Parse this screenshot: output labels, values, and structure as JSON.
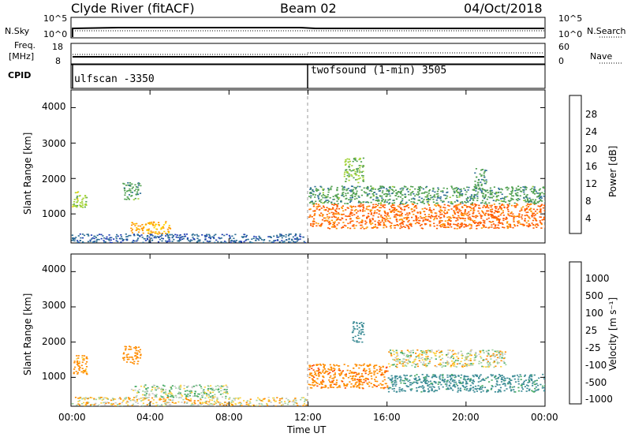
{
  "header": {
    "site": "Clyde River (fitACF)",
    "beam": "Beam 02",
    "date": "04/Oct/2018"
  },
  "params": {
    "nsky_label": "N.Sky",
    "nsky_ticks": [
      "10^5",
      "10^0"
    ],
    "nsearch_label": "N.Search",
    "nsearch_ticks": [
      "10^5",
      "10^0"
    ],
    "freq_label_1": "Freq.",
    "freq_label_2": "[MHz]",
    "freq_ticks": [
      "18",
      "8"
    ],
    "nave_label": "Nave",
    "nave_ticks": [
      "60",
      "0"
    ],
    "cpid_label": "CPID",
    "cpid_modes": [
      "ulfscan -3350",
      "twofsound (1-min) 3505"
    ]
  },
  "power_panel": {
    "ylabel": "Slant Range [km]",
    "cblabel": "Power [dB]",
    "cb_ticks": [
      "28",
      "24",
      "20",
      "16",
      "12",
      "8",
      "4"
    ],
    "cb_colors": [
      "#ff0000",
      "#ff5a00",
      "#ff9600",
      "#ffd200",
      "#a0d232",
      "#50a050",
      "#2d6e96",
      "#1e3cb4",
      "#0000ff"
    ]
  },
  "velocity_panel": {
    "ylabel": "Slant Range [km]",
    "cblabel": "Velocity [m s⁻¹]",
    "cb_ticks": [
      "1000",
      "500",
      "100",
      "25",
      "-25",
      "-100",
      "-500",
      "-1000"
    ],
    "cb_colors": [
      "#1e50b4",
      "#3c8c96",
      "#46aa64",
      "#a0d2a0",
      "#c8c8c8",
      "#ffd23c",
      "#ff8c00",
      "#ff4600",
      "#ff0000"
    ]
  },
  "axes": {
    "xlabel": "Time UT",
    "x_ticks": [
      "00:00",
      "04:00",
      "08:00",
      "12:00",
      "16:00",
      "20:00",
      "00:00"
    ],
    "y_ticks": [
      "4000",
      "3000",
      "2000",
      "1000"
    ]
  },
  "chart_data": [
    {
      "type": "heatmap",
      "title": "",
      "xlabel": "Time UT",
      "ylabel": "Slant Range [km]",
      "colorbar_label": "Power [dB]",
      "x_range_hours": [
        0,
        24
      ],
      "ylim_km": [
        180,
        4500
      ],
      "color_range_db": [
        0,
        32
      ],
      "regions": [
        {
          "t_start": 0.0,
          "t_end": 11.9,
          "range_start": 200,
          "range_end": 450,
          "power_db": 8
        },
        {
          "t_start": 0.0,
          "t_end": 0.8,
          "range_start": 1200,
          "range_end": 1650,
          "power_db": 16
        },
        {
          "t_start": 2.6,
          "t_end": 3.5,
          "range_start": 1400,
          "range_end": 1900,
          "power_db": 12
        },
        {
          "t_start": 3.0,
          "t_end": 5.0,
          "range_start": 450,
          "range_end": 800,
          "power_db": 22
        },
        {
          "t_start": 12.0,
          "t_end": 24.0,
          "range_start": 600,
          "range_end": 1300,
          "power_db": 26
        },
        {
          "t_start": 12.0,
          "t_end": 24.0,
          "range_start": 1300,
          "range_end": 1800,
          "power_db": 12
        },
        {
          "t_start": 13.8,
          "t_end": 14.8,
          "range_start": 1900,
          "range_end": 2600,
          "power_db": 14
        },
        {
          "t_start": 20.4,
          "t_end": 21.0,
          "range_start": 1800,
          "range_end": 2300,
          "power_db": 12
        }
      ]
    },
    {
      "type": "heatmap",
      "title": "",
      "xlabel": "Time UT",
      "ylabel": "Slant Range [km]",
      "colorbar_label": "Velocity [m s⁻¹]",
      "x_range_hours": [
        0,
        24
      ],
      "ylim_km": [
        180,
        4500
      ],
      "color_levels": [
        1000,
        500,
        100,
        25,
        -25,
        -100,
        -500,
        -1000
      ],
      "regions": [
        {
          "t_start": 0.0,
          "t_end": 11.9,
          "range_start": 200,
          "range_end": 450,
          "velocity": -50
        },
        {
          "t_start": 0.0,
          "t_end": 0.8,
          "range_start": 1100,
          "range_end": 1650,
          "velocity": -200
        },
        {
          "t_start": 2.6,
          "t_end": 3.5,
          "range_start": 1400,
          "range_end": 1900,
          "velocity": -300
        },
        {
          "t_start": 3.0,
          "t_end": 8.0,
          "range_start": 450,
          "range_end": 800,
          "velocity": 60
        },
        {
          "t_start": 12.0,
          "t_end": 16.0,
          "range_start": 700,
          "range_end": 1400,
          "velocity": -400
        },
        {
          "t_start": 16.0,
          "t_end": 24.0,
          "range_start": 600,
          "range_end": 1100,
          "velocity": 600
        },
        {
          "t_start": 16.0,
          "t_end": 22.0,
          "range_start": 1300,
          "range_end": 1800,
          "velocity": 0
        },
        {
          "t_start": 14.2,
          "t_end": 14.8,
          "range_start": 2000,
          "range_end": 2600,
          "velocity": 700
        }
      ]
    }
  ]
}
